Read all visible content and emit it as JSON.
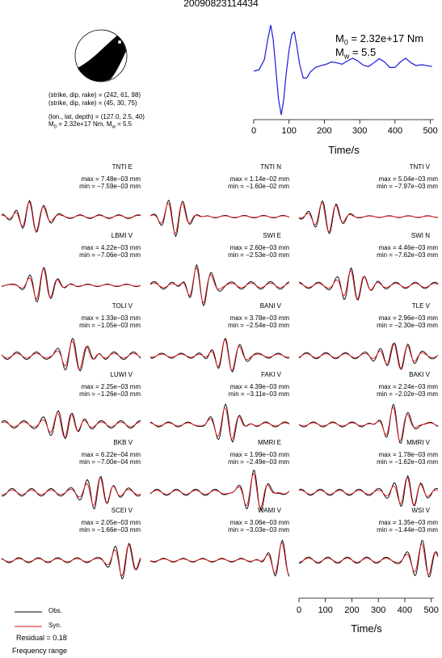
{
  "title": "20090823114434",
  "source_params": {
    "line1": "(strike, dip, rake) = (242, 61, 98)",
    "line2": "(strike, dip, rake) = (45, 30, 75)",
    "line3": "(lon., lat, depth) = (127.0, 2.5, 40)",
    "m0_text": "M",
    "m0_sub": "0",
    "m0_rest": " = 2.32e+17 Nm, M",
    "mw_sub": "w",
    "mw_rest": " = 5.5"
  },
  "stf_panel": {
    "m0_label": "M",
    "m0_sub": "0",
    "m0_value": " = 2.32e+17 Nm",
    "mw_label": "M",
    "mw_sub": "w",
    "mw_value": " = 5.5",
    "xlabel": "Time/s",
    "xticks": [
      "0",
      "100",
      "200",
      "300",
      "400",
      "500"
    ]
  },
  "bottom_axis": {
    "xlabel": "Time/s",
    "xticks": [
      "0",
      "100",
      "200",
      "300",
      "400",
      "500"
    ]
  },
  "legend": {
    "obs": "Obs.",
    "syn": "Syn.",
    "residual": "Residual = 0.18",
    "frequency": "Frequency range"
  },
  "colors": {
    "obs": "#000000",
    "syn": "#e0161b",
    "stf": "#1a1adc"
  },
  "stations": [
    {
      "name": "TNTI E",
      "max": "max = 7.48e−03 mm",
      "min": "min = −7.59e−03 mm"
    },
    {
      "name": "TNTI N",
      "max": "max = 1.14e−02 mm",
      "min": "min = −1.60e−02 mm"
    },
    {
      "name": "TNTI V",
      "max": "max = 5.04e−03 mm",
      "min": "min = −7.97e−03 mm"
    },
    {
      "name": "LBMI V",
      "max": "max = 4.22e−03 mm",
      "min": "min = −7.06e−03 mm"
    },
    {
      "name": "SWI E",
      "max": "max = 2.60e−03 mm",
      "min": "min = −2.53e−03 mm"
    },
    {
      "name": "SWI N",
      "max": "max = 4.46e−03 mm",
      "min": "min = −7.62e−03 mm"
    },
    {
      "name": "TOLI V",
      "max": "max = 1.33e−03 mm",
      "min": "min = −1.05e−03 mm"
    },
    {
      "name": "BANI V",
      "max": "max = 3.78e−03 mm",
      "min": "min = −2.54e−03 mm"
    },
    {
      "name": "TLE V",
      "max": "max = 2.96e−03 mm",
      "min": "min = −2.30e−03 mm"
    },
    {
      "name": "LUWI V",
      "max": "max = 2.25e−03 mm",
      "min": "min = −1.26e−03 mm"
    },
    {
      "name": "FAKI V",
      "max": "max = 4.39e−03 mm",
      "min": "min = −3.11e−03 mm"
    },
    {
      "name": "BAKI V",
      "max": "max = 2.24e−03 mm",
      "min": "min = −2.02e−03 mm"
    },
    {
      "name": "BKB V",
      "max": "max = 6.22e−04 mm",
      "min": "min = −7.00e−04 mm"
    },
    {
      "name": "MMRI E",
      "max": "max = 1.99e−03 mm",
      "min": "min = −2.49e−03 mm"
    },
    {
      "name": "MMRI V",
      "max": "max = 1.78e−03 mm",
      "min": "min = −1.62e−03 mm"
    },
    {
      "name": "SCEI V",
      "max": "max = 2.05e−03 mm",
      "min": "min = −1.66e−03 mm"
    },
    {
      "name": "WAMI V",
      "max": "max = 3.06e−03 mm",
      "min": "min = −3.03e−03 mm"
    },
    {
      "name": "WSI V",
      "max": "max = 1.35e−03 mm",
      "min": "min = −1.44e−03 mm"
    }
  ],
  "chart_data": [
    {
      "type": "line",
      "title": "",
      "xlabel": "Time/s",
      "ylabel": "",
      "xlim": [
        0,
        510
      ],
      "series": [
        {
          "x": [
            0,
            15,
            30,
            40,
            48,
            55,
            62,
            70,
            78,
            85,
            92,
            100,
            108,
            115,
            122,
            130,
            140,
            150,
            160,
            175,
            190,
            205,
            220,
            235,
            250,
            265,
            280,
            295,
            310,
            325,
            340,
            355,
            370,
            385,
            400,
            415,
            430,
            445,
            460,
            475,
            490,
            505
          ],
          "y": [
            0.0,
            0.03,
            0.25,
            0.7,
            1.0,
            0.7,
            0.1,
            -0.6,
            -0.95,
            -0.6,
            -0.05,
            0.45,
            0.8,
            0.85,
            0.55,
            0.15,
            -0.15,
            -0.15,
            -0.02,
            0.08,
            0.12,
            0.15,
            0.2,
            0.18,
            0.15,
            0.22,
            0.28,
            0.22,
            0.13,
            0.1,
            0.18,
            0.27,
            0.2,
            0.08,
            0.08,
            0.2,
            0.28,
            0.18,
            0.12,
            0.14,
            0.12,
            0.1
          ]
        }
      ]
    },
    {
      "type": "line",
      "title": "",
      "xlabel": "Time/s",
      "ylabel": "",
      "xlim": [
        0,
        510
      ],
      "series": [
        {
          "name": "Obs.",
          "x": [],
          "y": []
        },
        {
          "name": "Syn.",
          "x": [],
          "y": []
        }
      ]
    }
  ]
}
